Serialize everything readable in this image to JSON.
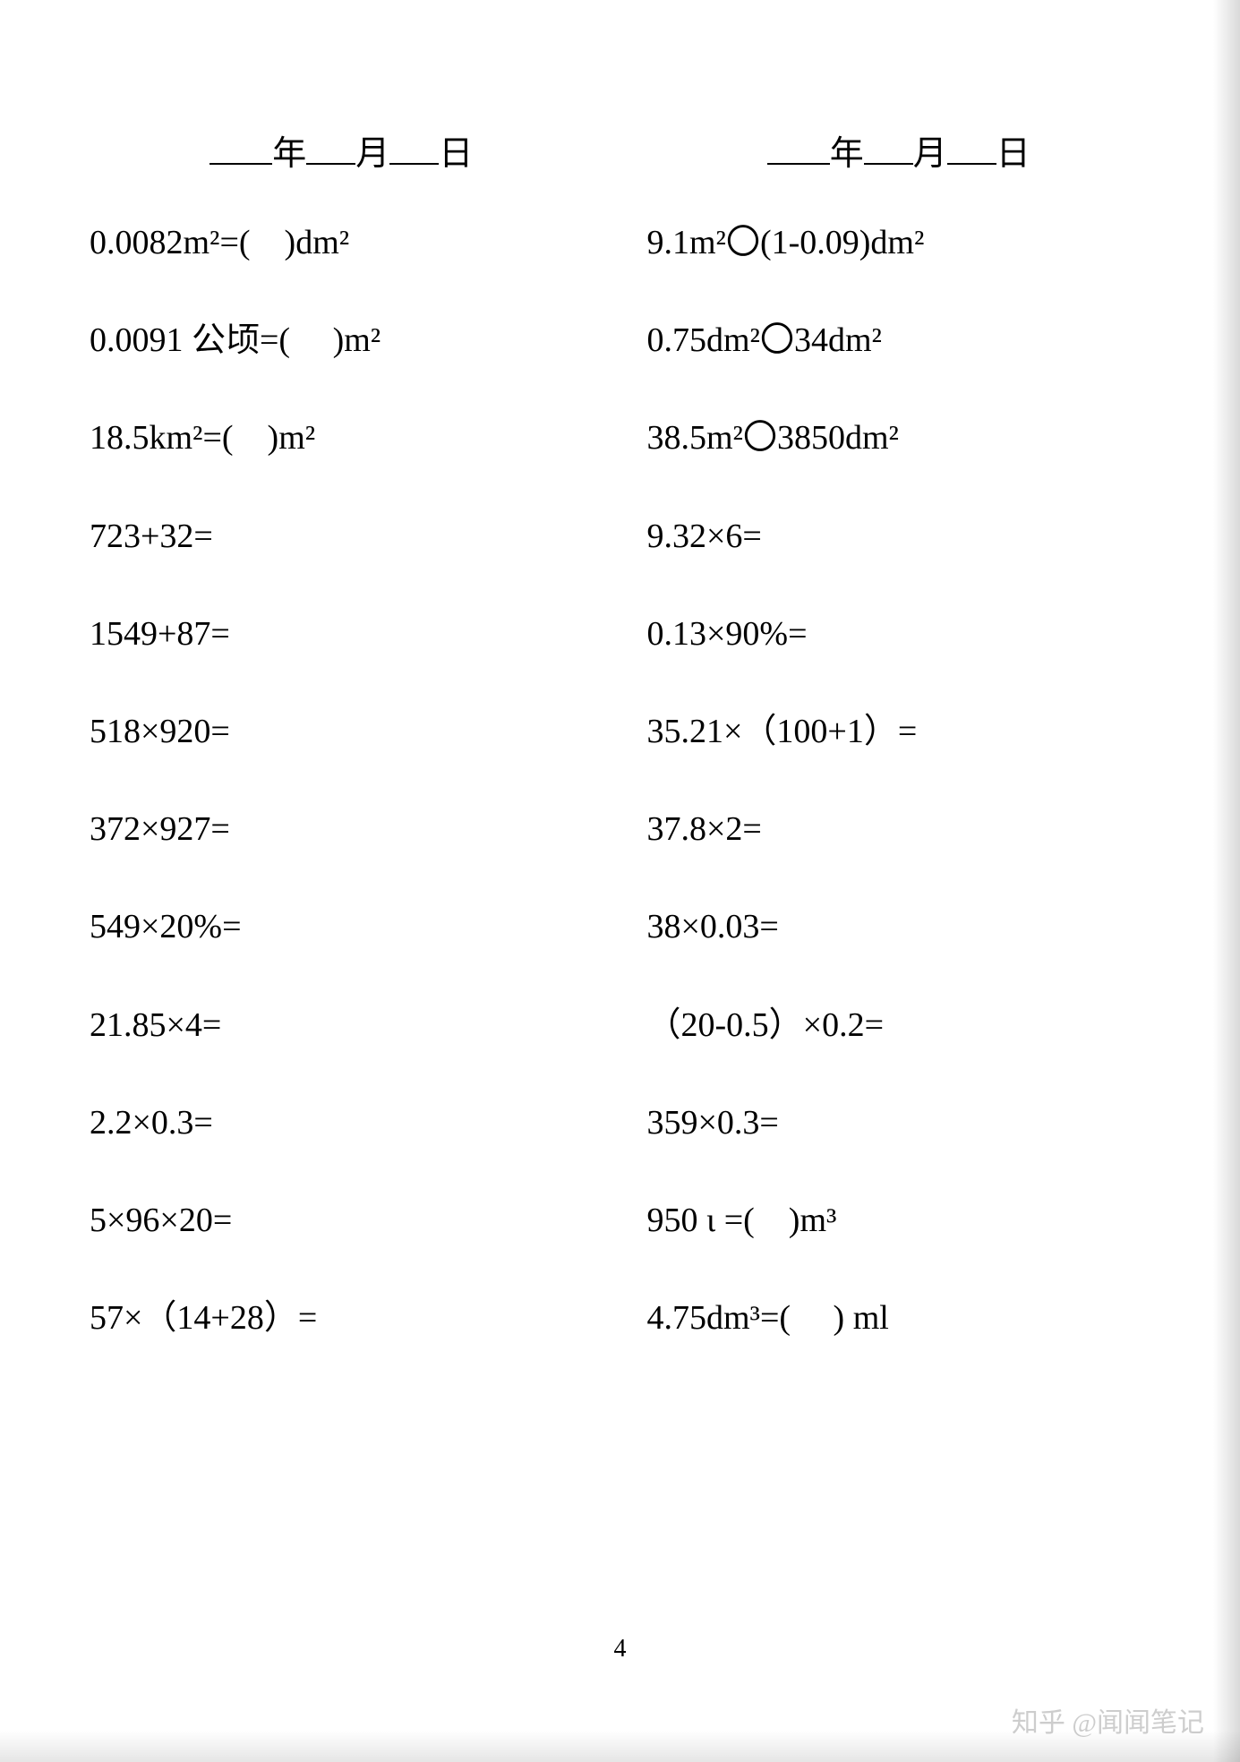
{
  "date_labels": {
    "year": "年",
    "month": "月",
    "day": "日"
  },
  "left_column": [
    "0.0082m²=(　)dm²",
    "0.0091 公顷=(　 )m²",
    "18.5km²=(　)m²",
    "723+32=",
    "1549+87=",
    "518×920=",
    "372×927=",
    "549×20%=",
    "21.85×4=",
    "2.2×0.3=",
    "5×96×20=",
    "57×（14+28）="
  ],
  "right_column": [
    "9.1m²〇(1-0.09)dm²",
    "0.75dm²〇34dm²",
    "38.5m²〇3850dm²",
    "9.32×6=",
    "0.13×90%=",
    "35.21×（100+1）=",
    "37.8×2=",
    "38×0.03=",
    "（20-0.5）×0.2=",
    "359×0.3=",
    "950 ι =(　)m³",
    "4.75dm³=(　 ) ml"
  ],
  "page_number": "4",
  "watermark": "知乎 @闻闻笔记"
}
